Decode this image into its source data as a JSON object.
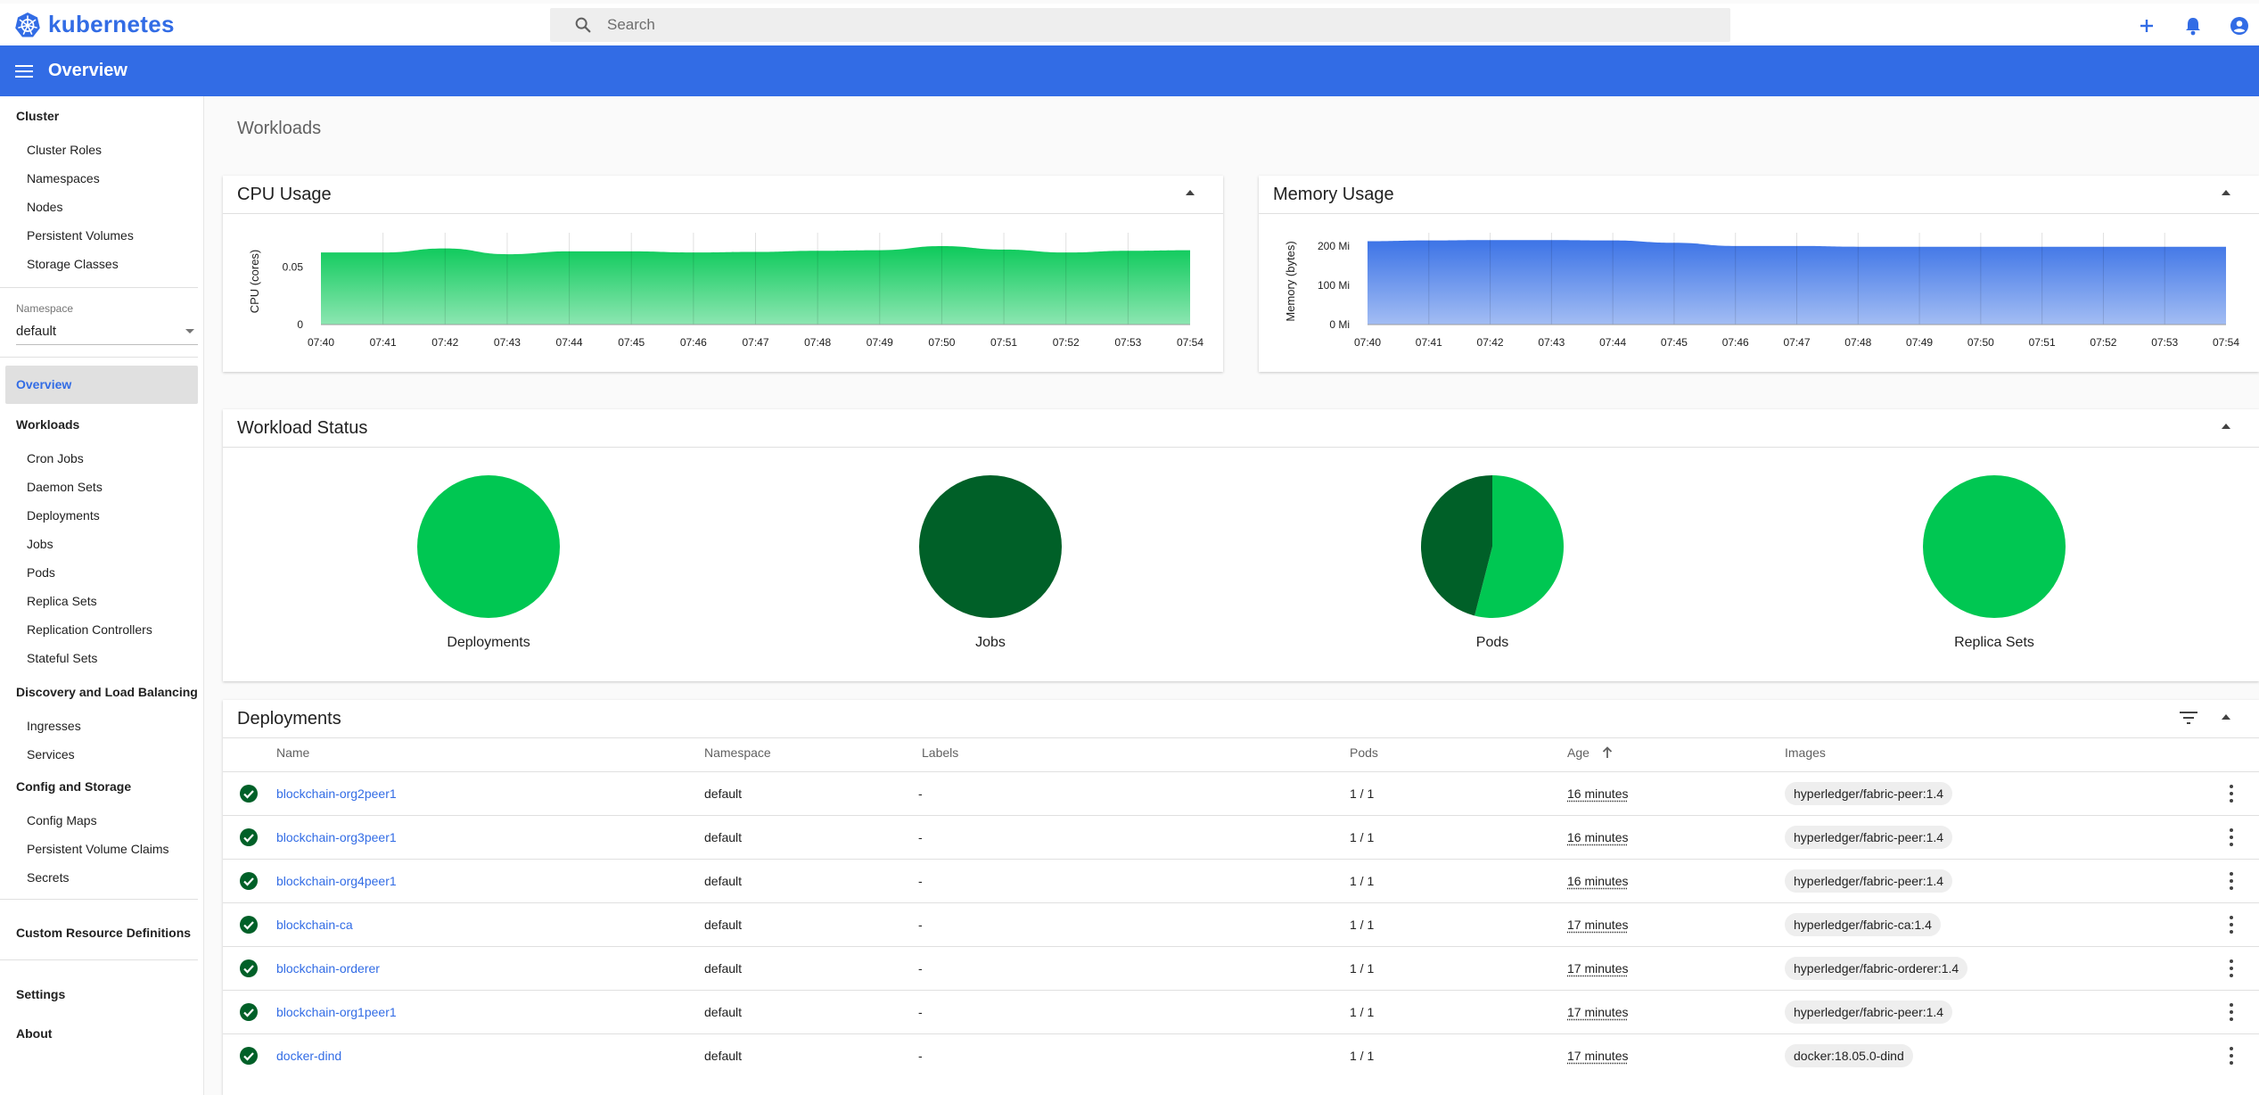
{
  "app": {
    "title": "kubernetes",
    "page_title": "Overview"
  },
  "search": {
    "placeholder": "Search"
  },
  "sidebar": {
    "cluster": {
      "title": "Cluster",
      "items": [
        "Cluster Roles",
        "Namespaces",
        "Nodes",
        "Persistent Volumes",
        "Storage Classes"
      ]
    },
    "namespace": {
      "label": "Namespace",
      "value": "default"
    },
    "overview": "Overview",
    "workloads": {
      "title": "Workloads",
      "items": [
        "Cron Jobs",
        "Daemon Sets",
        "Deployments",
        "Jobs",
        "Pods",
        "Replica Sets",
        "Replication Controllers",
        "Stateful Sets"
      ]
    },
    "discovery": {
      "title": "Discovery and Load Balancing",
      "items": [
        "Ingresses",
        "Services"
      ]
    },
    "config": {
      "title": "Config and Storage",
      "items": [
        "Config Maps",
        "Persistent Volume Claims",
        "Secrets"
      ]
    },
    "crd": "Custom Resource Definitions",
    "settings": "Settings",
    "about": "About"
  },
  "main": {
    "section_title": "Workloads"
  },
  "cpu_card": {
    "title": "CPU Usage"
  },
  "memory_card": {
    "title": "Memory Usage"
  },
  "status_card": {
    "title": "Workload Status",
    "items": [
      {
        "label": "Deployments",
        "running_fraction": 1.0
      },
      {
        "label": "Jobs",
        "succeeded_fraction": 1.0
      },
      {
        "label": "Pods",
        "running_fraction": 0.54,
        "succeeded_fraction": 0.46
      },
      {
        "label": "Replica Sets",
        "running_fraction": 1.0
      }
    ],
    "colors": {
      "running": "#00c752",
      "succeeded": "#006028"
    }
  },
  "deployments": {
    "title": "Deployments",
    "columns": {
      "name": "Name",
      "namespace": "Namespace",
      "labels": "Labels",
      "pods": "Pods",
      "age": "Age",
      "images": "Images"
    },
    "rows": [
      {
        "name": "blockchain-org2peer1",
        "namespace": "default",
        "labels": "-",
        "pods": "1 / 1",
        "age": "16 minutes",
        "image": "hyperledger/fabric-peer:1.4"
      },
      {
        "name": "blockchain-org3peer1",
        "namespace": "default",
        "labels": "-",
        "pods": "1 / 1",
        "age": "16 minutes",
        "image": "hyperledger/fabric-peer:1.4"
      },
      {
        "name": "blockchain-org4peer1",
        "namespace": "default",
        "labels": "-",
        "pods": "1 / 1",
        "age": "16 minutes",
        "image": "hyperledger/fabric-peer:1.4"
      },
      {
        "name": "blockchain-ca",
        "namespace": "default",
        "labels": "-",
        "pods": "1 / 1",
        "age": "17 minutes",
        "image": "hyperledger/fabric-ca:1.4"
      },
      {
        "name": "blockchain-orderer",
        "namespace": "default",
        "labels": "-",
        "pods": "1 / 1",
        "age": "17 minutes",
        "image": "hyperledger/fabric-orderer:1.4"
      },
      {
        "name": "blockchain-org1peer1",
        "namespace": "default",
        "labels": "-",
        "pods": "1 / 1",
        "age": "17 minutes",
        "image": "hyperledger/fabric-peer:1.4"
      },
      {
        "name": "docker-dind",
        "namespace": "default",
        "labels": "-",
        "pods": "1 / 1",
        "age": "17 minutes",
        "image": "docker:18.05.0-dind"
      }
    ]
  },
  "chart_data": [
    {
      "type": "area",
      "title": "CPU Usage",
      "ylabel": "CPU (cores)",
      "x": [
        "07:40",
        "07:41",
        "07:42",
        "07:43",
        "07:44",
        "07:45",
        "07:46",
        "07:47",
        "07:48",
        "07:49",
        "07:50",
        "07:51",
        "07:52",
        "07:53",
        "07:54"
      ],
      "yticks": [
        "0",
        "0.05"
      ],
      "ylim": [
        0,
        0.075
      ],
      "series": [
        {
          "values": [
            0.0625,
            0.0625,
            0.066,
            0.061,
            0.0635,
            0.0635,
            0.0625,
            0.063,
            0.064,
            0.0645,
            0.068,
            0.065,
            0.0625,
            0.064,
            0.0645
          ]
        }
      ],
      "color": "#00c752"
    },
    {
      "type": "area",
      "title": "Memory Usage",
      "ylabel": "Memory (bytes)",
      "x": [
        "07:40",
        "07:41",
        "07:42",
        "07:43",
        "07:44",
        "07:45",
        "07:46",
        "07:47",
        "07:48",
        "07:49",
        "07:50",
        "07:51",
        "07:52",
        "07:53",
        "07:54"
      ],
      "yticks": [
        "0 Mi",
        "100 Mi",
        "200 Mi"
      ],
      "ylim": [
        0,
        220
      ],
      "series": [
        {
          "values": [
            212,
            214,
            215,
            215,
            214,
            208,
            200,
            200,
            198,
            198,
            198,
            198,
            198,
            198,
            198
          ]
        }
      ],
      "color": "#326ce5"
    }
  ]
}
